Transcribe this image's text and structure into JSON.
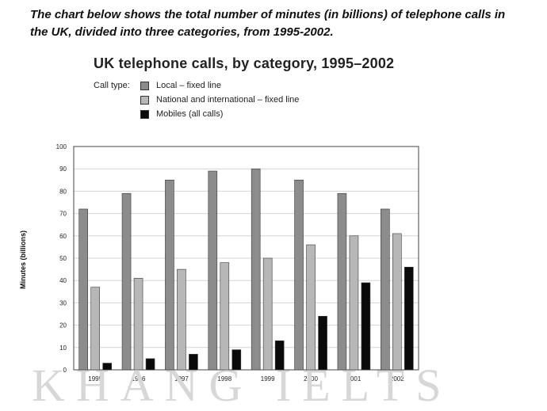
{
  "intro_text": "The chart below shows the total number of minutes (in billions) of telephone calls in the UK, divided into three categories, from 1995-2002.",
  "watermark": "KHANG IELTS",
  "chart_data": {
    "type": "bar",
    "title": "UK telephone calls, by category, 1995–2002",
    "legend_title": "Call type:",
    "categories": [
      "1995",
      "1996",
      "1997",
      "1998",
      "1999",
      "2000",
      "2001",
      "2002"
    ],
    "series": [
      {
        "name": "Local – fixed line",
        "values": [
          72,
          79,
          85,
          89,
          90,
          85,
          79,
          72
        ],
        "color": "#8c8c8c"
      },
      {
        "name": "National and international – fixed line",
        "values": [
          37,
          41,
          45,
          48,
          50,
          56,
          60,
          61
        ],
        "color": "#b7b7b7"
      },
      {
        "name": "Mobiles (all calls)",
        "values": [
          3,
          5,
          7,
          9,
          13,
          24,
          39,
          46
        ],
        "color": "#0a0a0a"
      }
    ],
    "xlabel": "",
    "ylabel": "Minutes (billions)",
    "ylim": [
      0,
      100
    ],
    "yticks": [
      "0",
      "10",
      "20",
      "30",
      "40",
      "50",
      "60",
      "70",
      "80",
      "90",
      "100"
    ],
    "grid": true,
    "legend_position": "top-left"
  }
}
